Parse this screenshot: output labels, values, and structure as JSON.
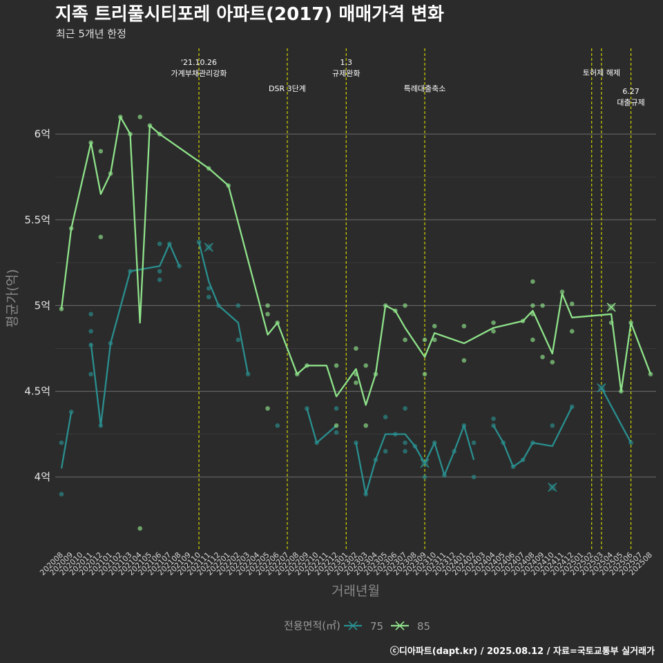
{
  "title": "지족 트리풀시티포레 아파트(2017) 매매가격 변화",
  "subtitle": "최근 5개년 한정",
  "source": "ⓒ디아파트(dapt.kr) / 2025.08.12 / 자료=국토교통부 실거래가",
  "colors": {
    "background": "#2b2b2b",
    "s75": "#2a8f8f",
    "s85": "#8fe38a",
    "event_line": "#d4d400",
    "grid": "#6e6e6e"
  },
  "chart_data": {
    "type": "line",
    "xlabel": "거래년월",
    "ylabel": "평균가(억)",
    "ylim": [
      3.58,
      6.5
    ],
    "yticks": [
      {
        "v": 4,
        "label": "4억"
      },
      {
        "v": 4.5,
        "label": "4.5억"
      },
      {
        "v": 5,
        "label": "5억"
      },
      {
        "v": 5.5,
        "label": "5.5억"
      },
      {
        "v": 6,
        "label": "6억"
      }
    ],
    "months": [
      "202008",
      "202009",
      "202010",
      "202011",
      "202012",
      "202101",
      "202102",
      "202103",
      "202104",
      "202105",
      "202106",
      "202107",
      "202108",
      "202109",
      "202110",
      "202111",
      "202112",
      "202201",
      "202202",
      "202203",
      "202204",
      "202205",
      "202206",
      "202207",
      "202208",
      "202209",
      "202210",
      "202211",
      "202212",
      "202301",
      "202302",
      "202303",
      "202304",
      "202305",
      "202306",
      "202307",
      "202308",
      "202309",
      "202310",
      "202311",
      "202312",
      "202401",
      "202402",
      "202403",
      "202404",
      "202405",
      "202406",
      "202407",
      "202408",
      "202409",
      "202410",
      "202411",
      "202412",
      "202501",
      "202502",
      "202503",
      "202504",
      "202505",
      "202506",
      "202507",
      "202508"
    ],
    "events": [
      {
        "month": "202110",
        "label": [
          "'21.10.26",
          "가계부채관리강화"
        ],
        "level": 0
      },
      {
        "month": "202207",
        "label": [
          "DSR 3단계"
        ],
        "level": 1
      },
      {
        "month": "202301",
        "label": [
          "1.3",
          "규제완화"
        ],
        "level": 0
      },
      {
        "month": "202309",
        "label": [
          "특례대출축소"
        ],
        "level": 1
      },
      {
        "month": "202502",
        "label": [],
        "level": 0
      },
      {
        "month": "202503",
        "label": [
          "토허제 해제"
        ],
        "level": 0.4
      },
      {
        "month": "202506",
        "label": [
          "6.27",
          "대출규제"
        ],
        "level": 1.1
      }
    ],
    "legend": {
      "title": "전용면적(㎡)",
      "position": "bottom"
    },
    "series": [
      {
        "name": "75",
        "line": [
          [
            [
              "202008",
              4.05
            ],
            [
              "202009",
              4.38
            ]
          ],
          [
            [
              "202011",
              4.78
            ],
            [
              "202012",
              4.3
            ],
            [
              "202101",
              4.78
            ],
            [
              "202103",
              5.2
            ],
            [
              "202106",
              5.23
            ],
            [
              "202107",
              5.36
            ],
            [
              "202108",
              5.23
            ]
          ],
          [
            [
              "202110",
              5.37
            ],
            [
              "202111",
              5.14
            ],
            [
              "202112",
              5.0
            ],
            [
              "202202",
              4.9
            ],
            [
              "202203",
              4.6
            ]
          ],
          [
            [
              "202209",
              4.4
            ],
            [
              "202210",
              4.2
            ],
            [
              "202212",
              4.3
            ]
          ],
          [
            [
              "202302",
              4.2
            ],
            [
              "202303",
              3.9
            ],
            [
              "202304",
              4.1
            ],
            [
              "202305",
              4.25
            ],
            [
              "202306",
              4.25
            ],
            [
              "202307",
              4.25
            ],
            [
              "202308",
              4.18
            ],
            [
              "202309",
              4.08
            ],
            [
              "202310",
              4.2
            ],
            [
              "202311",
              4.01
            ],
            [
              "202312",
              4.15
            ],
            [
              "202401",
              4.3
            ],
            [
              "202402",
              4.1
            ]
          ],
          [
            [
              "202404",
              4.3
            ],
            [
              "202405",
              4.2
            ],
            [
              "202406",
              4.06
            ],
            [
              "202407",
              4.1
            ],
            [
              "202408",
              4.2
            ],
            [
              "202410",
              4.18
            ],
            [
              "202412",
              4.41
            ]
          ],
          [
            [
              "202503",
              4.52
            ],
            [
              "202506",
              4.2
            ]
          ]
        ],
        "points": [
          [
            "202008",
            4.2
          ],
          [
            "202008",
            3.9
          ],
          [
            "202009",
            4.38
          ],
          [
            "202011",
            4.95
          ],
          [
            "202011",
            4.85
          ],
          [
            "202011",
            4.77
          ],
          [
            "202011",
            4.6
          ],
          [
            "202012",
            4.3
          ],
          [
            "202101",
            4.78
          ],
          [
            "202103",
            5.2
          ],
          [
            "202106",
            5.36
          ],
          [
            "202106",
            5.2
          ],
          [
            "202106",
            5.15
          ],
          [
            "202107",
            5.36
          ],
          [
            "202108",
            5.23
          ],
          [
            "202110",
            5.37
          ],
          [
            "202111",
            5.1
          ],
          [
            "202111",
            5.05
          ],
          [
            "202112",
            5.0
          ],
          [
            "202202",
            5.0
          ],
          [
            "202202",
            4.8
          ],
          [
            "202203",
            4.6
          ],
          [
            "202206",
            4.3
          ],
          [
            "202209",
            4.4
          ],
          [
            "202210",
            4.2
          ],
          [
            "202212",
            4.4
          ],
          [
            "202212",
            4.26
          ],
          [
            "202302",
            4.2
          ],
          [
            "202303",
            3.9
          ],
          [
            "202304",
            4.1
          ],
          [
            "202305",
            4.35
          ],
          [
            "202305",
            4.15
          ],
          [
            "202306",
            4.25
          ],
          [
            "202307",
            4.4
          ],
          [
            "202307",
            4.2
          ],
          [
            "202307",
            4.15
          ],
          [
            "202308",
            4.18
          ],
          [
            "202309",
            4.0
          ],
          [
            "202310",
            4.2
          ],
          [
            "202311",
            4.01
          ],
          [
            "202312",
            4.15
          ],
          [
            "202401",
            4.3
          ],
          [
            "202402",
            4.2
          ],
          [
            "202402",
            4.0
          ],
          [
            "202404",
            4.34
          ],
          [
            "202404",
            4.3
          ],
          [
            "202405",
            4.2
          ],
          [
            "202406",
            4.06
          ],
          [
            "202407",
            4.1
          ],
          [
            "202408",
            4.2
          ],
          [
            "202410",
            4.3
          ],
          [
            "202412",
            4.41
          ],
          [
            "202506",
            4.2
          ]
        ],
        "crosses": [
          [
            "202111",
            5.34
          ],
          [
            "202309",
            4.08
          ],
          [
            "202410",
            3.94
          ],
          [
            "202503",
            4.52
          ]
        ]
      },
      {
        "name": "85",
        "line": [
          [
            [
              "202008",
              4.98
            ],
            [
              "202009",
              5.45
            ],
            [
              "202011",
              5.95
            ],
            [
              "202012",
              5.65
            ],
            [
              "202101",
              5.77
            ],
            [
              "202102",
              6.1
            ],
            [
              "202103",
              6.0
            ],
            [
              "202104",
              4.9
            ],
            [
              "202105",
              6.05
            ],
            [
              "202106",
              6.0
            ],
            [
              "202111",
              5.8
            ],
            [
              "202201",
              5.7
            ],
            [
              "202205",
              4.83
            ],
            [
              "202206",
              4.9
            ],
            [
              "202208",
              4.6
            ],
            [
              "202209",
              4.65
            ],
            [
              "202211",
              4.65
            ],
            [
              "202212",
              4.47
            ],
            [
              "202302",
              4.63
            ],
            [
              "202303",
              4.42
            ],
            [
              "202304",
              4.6
            ],
            [
              "202305",
              5.0
            ],
            [
              "202306",
              4.97
            ],
            [
              "202307",
              4.87
            ],
            [
              "202309",
              4.7
            ],
            [
              "202310",
              4.84
            ],
            [
              "202401",
              4.78
            ],
            [
              "202404",
              4.87
            ],
            [
              "202407",
              4.91
            ],
            [
              "202408",
              4.97
            ],
            [
              "202410",
              4.72
            ],
            [
              "202411",
              5.07
            ],
            [
              "202412",
              4.93
            ],
            [
              "202504",
              4.95
            ],
            [
              "202505",
              4.5
            ],
            [
              "202506",
              4.9
            ],
            [
              "202508",
              4.6
            ]
          ]
        ],
        "points": [
          [
            "202008",
            4.98
          ],
          [
            "202009",
            5.45
          ],
          [
            "202011",
            5.95
          ],
          [
            "202012",
            5.9
          ],
          [
            "202012",
            5.4
          ],
          [
            "202101",
            5.77
          ],
          [
            "202102",
            6.1
          ],
          [
            "202103",
            6.0
          ],
          [
            "202104",
            6.1
          ],
          [
            "202104",
            3.7
          ],
          [
            "202105",
            6.05
          ],
          [
            "202106",
            6.0
          ],
          [
            "202111",
            5.8
          ],
          [
            "202201",
            5.7
          ],
          [
            "202205",
            5.0
          ],
          [
            "202205",
            4.95
          ],
          [
            "202205",
            4.4
          ],
          [
            "202206",
            4.9
          ],
          [
            "202208",
            4.6
          ],
          [
            "202209",
            4.65
          ],
          [
            "202212",
            4.65
          ],
          [
            "202212",
            4.3
          ],
          [
            "202302",
            4.75
          ],
          [
            "202302",
            4.6
          ],
          [
            "202302",
            4.55
          ],
          [
            "202303",
            4.65
          ],
          [
            "202303",
            4.3
          ],
          [
            "202304",
            4.6
          ],
          [
            "202305",
            5.0
          ],
          [
            "202306",
            4.97
          ],
          [
            "202307",
            5.0
          ],
          [
            "202307",
            4.8
          ],
          [
            "202309",
            4.8
          ],
          [
            "202309",
            4.6
          ],
          [
            "202310",
            4.88
          ],
          [
            "202310",
            4.8
          ],
          [
            "202401",
            4.88
          ],
          [
            "202401",
            4.68
          ],
          [
            "202404",
            4.9
          ],
          [
            "202404",
            4.85
          ],
          [
            "202407",
            4.91
          ],
          [
            "202408",
            5.14
          ],
          [
            "202408",
            5.0
          ],
          [
            "202408",
            4.95
          ],
          [
            "202408",
            4.8
          ],
          [
            "202409",
            5.0
          ],
          [
            "202409",
            4.7
          ],
          [
            "202410",
            4.67
          ],
          [
            "202411",
            5.08
          ],
          [
            "202412",
            5.01
          ],
          [
            "202412",
            4.85
          ],
          [
            "202504",
            4.9
          ],
          [
            "202505",
            4.5
          ],
          [
            "202506",
            4.9
          ],
          [
            "202508",
            4.6
          ]
        ],
        "crosses": [
          [
            "202504",
            4.99
          ]
        ]
      }
    ]
  }
}
